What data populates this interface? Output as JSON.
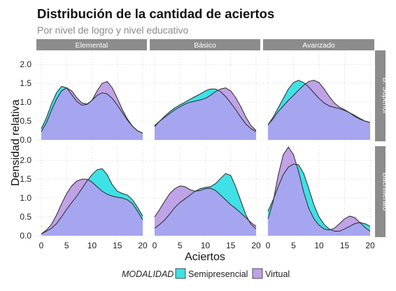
{
  "chart_data": {
    "type": "area",
    "title": "Distribución de la cantidad de aciertos",
    "subtitle": "Por nivel de logro y nivel educativo",
    "xlabel": "Aciertos",
    "ylabel": "Densidad relativa",
    "xlim": [
      0,
      20
    ],
    "ylim": [
      0,
      2.3
    ],
    "x_ticks": [
      0,
      5,
      10,
      15,
      20
    ],
    "x_tick_labels": [
      "0",
      "5",
      "10",
      "15",
      "20"
    ],
    "y_ticks": [
      0,
      0.5,
      1,
      1.5,
      2
    ],
    "y_tick_labels": [
      "0.0",
      "0.5",
      "1.0",
      "1.5",
      "2.0"
    ],
    "grid": true,
    "legend_position": "bottom",
    "legend_title": "MODALIDAD",
    "columns": [
      "Elemental",
      "Básico",
      "Avanzado"
    ],
    "rows": [
      "B. Superior",
      "Bachillerato"
    ],
    "series": [
      {
        "name": "Semipresencial",
        "color": "#3fe0e6"
      },
      {
        "name": "Virtual",
        "color": "#c0a2e6"
      }
    ],
    "overlap_color": "#a5a6ef",
    "x": [
      0,
      1,
      2,
      3,
      4,
      5,
      6,
      7,
      8,
      9,
      10,
      11,
      12,
      13,
      14,
      15,
      16,
      17,
      18,
      19,
      20
    ],
    "panels": [
      {
        "row": "B. Superior",
        "column": "Elemental",
        "Semipresencial": [
          0.3,
          0.58,
          0.95,
          1.25,
          1.42,
          1.38,
          1.2,
          1.02,
          0.92,
          0.94,
          1.05,
          1.18,
          1.25,
          1.22,
          1.1,
          0.92,
          0.72,
          0.52,
          0.36,
          0.24,
          0.18
        ],
        "Virtual": [
          0.22,
          0.45,
          0.78,
          1.08,
          1.3,
          1.38,
          1.3,
          1.12,
          0.98,
          0.95,
          1.05,
          1.3,
          1.5,
          1.55,
          1.38,
          1.1,
          0.8,
          0.55,
          0.36,
          0.24,
          0.18
        ]
      },
      {
        "row": "B. Superior",
        "column": "Básico",
        "Semipresencial": [
          0.35,
          0.5,
          0.63,
          0.75,
          0.85,
          0.93,
          1.0,
          1.08,
          1.15,
          1.22,
          1.3,
          1.35,
          1.35,
          1.28,
          1.15,
          0.98,
          0.8,
          0.6,
          0.42,
          0.3,
          0.22
        ],
        "Virtual": [
          0.38,
          0.5,
          0.6,
          0.7,
          0.8,
          0.88,
          0.95,
          1.0,
          1.03,
          1.06,
          1.1,
          1.18,
          1.28,
          1.35,
          1.38,
          1.3,
          1.12,
          0.88,
          0.6,
          0.38,
          0.25
        ]
      },
      {
        "row": "B. Superior",
        "column": "Avanzado",
        "Semipresencial": [
          0.4,
          0.6,
          0.85,
          1.1,
          1.35,
          1.52,
          1.58,
          1.52,
          1.4,
          1.25,
          1.1,
          0.98,
          0.9,
          0.86,
          0.83,
          0.78,
          0.72,
          0.65,
          0.57,
          0.5,
          0.46
        ],
        "Virtual": [
          0.4,
          0.56,
          0.75,
          0.9,
          1.05,
          1.18,
          1.32,
          1.45,
          1.55,
          1.58,
          1.52,
          1.35,
          1.15,
          0.98,
          0.87,
          0.8,
          0.72,
          0.62,
          0.55,
          0.5,
          0.46
        ]
      },
      {
        "row": "Bachillerato",
        "column": "Elemental",
        "Semipresencial": [
          0.05,
          0.12,
          0.2,
          0.32,
          0.5,
          0.7,
          0.88,
          1.05,
          1.25,
          1.45,
          1.62,
          1.75,
          1.78,
          1.62,
          1.35,
          1.18,
          1.12,
          1.08,
          0.95,
          0.75,
          0.52
        ],
        "Virtual": [
          0.05,
          0.15,
          0.3,
          0.55,
          0.85,
          1.12,
          1.32,
          1.45,
          1.5,
          1.5,
          1.42,
          1.3,
          1.18,
          1.1,
          1.05,
          1.02,
          1.0,
          0.95,
          0.85,
          0.65,
          0.42
        ]
      },
      {
        "row": "Bachillerato",
        "column": "Básico",
        "Semipresencial": [
          0.2,
          0.3,
          0.42,
          0.58,
          0.75,
          0.88,
          0.98,
          1.08,
          1.18,
          1.25,
          1.28,
          1.3,
          1.38,
          1.52,
          1.65,
          1.6,
          1.3,
          0.92,
          0.55,
          0.3,
          0.18
        ],
        "Virtual": [
          0.5,
          0.7,
          0.92,
          1.12,
          1.25,
          1.32,
          1.3,
          1.22,
          1.18,
          1.2,
          1.25,
          1.26,
          1.2,
          1.08,
          0.95,
          0.82,
          0.72,
          0.6,
          0.48,
          0.35,
          0.25
        ]
      },
      {
        "row": "Bachillerato",
        "column": "Avanzado",
        "Semipresencial": [
          0.65,
          0.95,
          1.3,
          1.62,
          1.82,
          1.9,
          1.88,
          1.65,
          1.25,
          0.82,
          0.5,
          0.3,
          0.18,
          0.12,
          0.12,
          0.18,
          0.25,
          0.32,
          0.35,
          0.32,
          0.25
        ],
        "Virtual": [
          0.45,
          0.9,
          1.6,
          2.15,
          2.35,
          2.15,
          1.7,
          1.15,
          0.72,
          0.45,
          0.28,
          0.18,
          0.15,
          0.2,
          0.32,
          0.45,
          0.52,
          0.48,
          0.35,
          0.22,
          0.12
        ]
      }
    ]
  }
}
